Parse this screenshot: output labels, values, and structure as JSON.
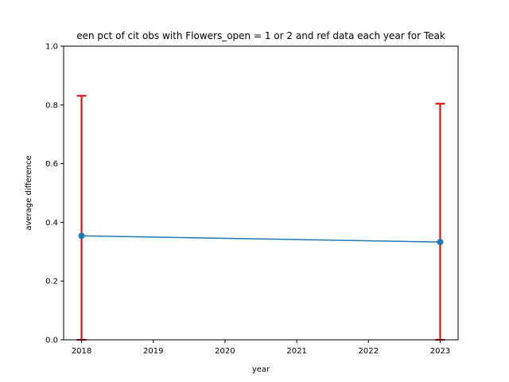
{
  "chart_data": {
    "type": "line",
    "title": "een pct of cit obs with Flowers_open = 1 or 2 and ref data each year for Teak",
    "xlabel": "year",
    "ylabel": "average difference",
    "x_ticks": [
      "2018",
      "2019",
      "2020",
      "2021",
      "2022",
      "2023"
    ],
    "y_ticks": [
      "0.0",
      "0.2",
      "0.4",
      "0.6",
      "0.8",
      "1.0"
    ],
    "xlim": [
      2017.75,
      2023.25
    ],
    "ylim": [
      0,
      1
    ],
    "grid": false,
    "series": [
      {
        "x": [
          2018,
          2023
        ],
        "values": [
          0.354,
          0.333
        ],
        "error_upper": [
          0.831,
          0.804
        ],
        "error_lower": [
          0.0,
          0.0
        ],
        "color": "#1f77b4",
        "error_color": "#e00000"
      }
    ]
  }
}
